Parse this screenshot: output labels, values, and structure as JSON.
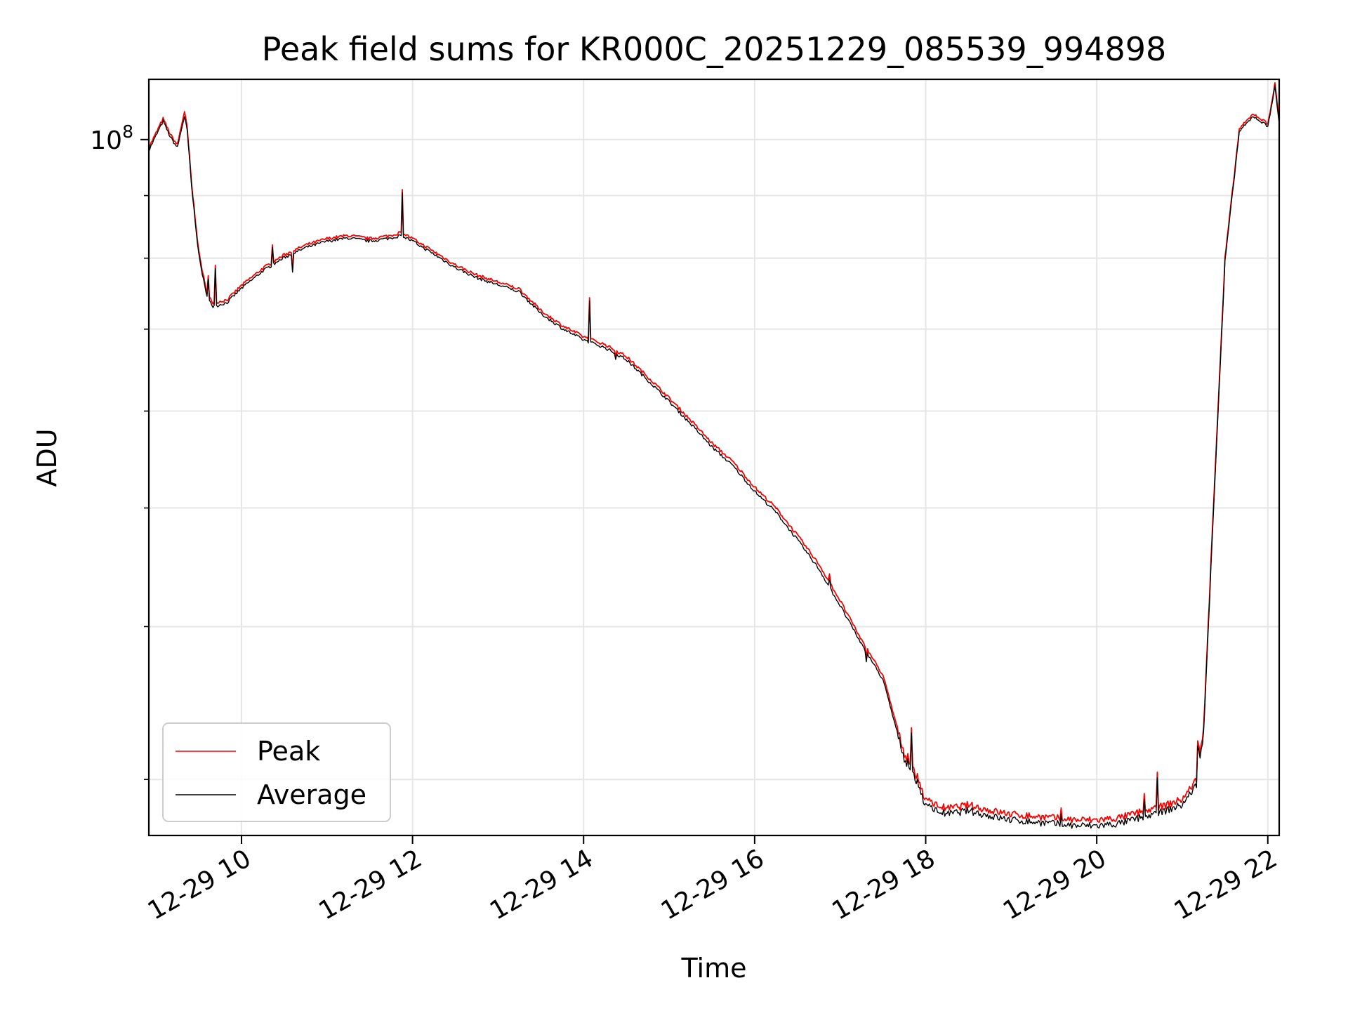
{
  "chart_data": {
    "type": "line",
    "title": "Peak field sums for KR000C_20251229_085539_994898",
    "xlabel": "Time",
    "ylabel": "ADU",
    "y_scale": "log",
    "y_tick_base": "10",
    "y_tick_exp": "8",
    "y_tick_label": "10^8",
    "xlim": [
      "2025-12-29 08:55",
      "2025-12-29 22:08"
    ],
    "ylim": [
      27000000,
      112000000
    ],
    "x_tick_labels": [
      "12-29 10",
      "12-29 12",
      "12-29 14",
      "12-29 16",
      "12-29 18",
      "12-29 20",
      "12-29 22"
    ],
    "x_ticks": [
      "2025-12-29 10:00",
      "2025-12-29 12:00",
      "2025-12-29 14:00",
      "2025-12-29 16:00",
      "2025-12-29 18:00",
      "2025-12-29 20:00",
      "2025-12-29 22:00"
    ],
    "y_minor_ticks": [
      30000000,
      40000000,
      50000000,
      60000000,
      70000000,
      80000000,
      90000000
    ],
    "grid": true,
    "legend_position": "lower-left",
    "colors": {
      "Peak": "#ff0000",
      "Average": "#000000"
    },
    "series": [
      {
        "name": "Peak",
        "x": [
          "08:55",
          "09:05",
          "09:10",
          "09:15",
          "09:20",
          "09:22",
          "09:25",
          "09:30",
          "09:35",
          "09:40",
          "09:50",
          "10:00",
          "10:15",
          "10:30",
          "10:45",
          "11:00",
          "11:15",
          "11:30",
          "11:45",
          "11:52",
          "12:00",
          "12:15",
          "12:30",
          "12:45",
          "13:00",
          "13:15",
          "13:30",
          "13:45",
          "14:00",
          "14:15",
          "14:30",
          "14:45",
          "15:00",
          "15:15",
          "15:30",
          "15:45",
          "16:00",
          "16:15",
          "16:30",
          "16:45",
          "17:00",
          "17:15",
          "17:30",
          "17:45",
          "17:55",
          "18:00",
          "18:15",
          "18:30",
          "18:45",
          "19:00",
          "19:15",
          "19:30",
          "19:45",
          "20:00",
          "20:15",
          "20:30",
          "20:45",
          "21:00",
          "21:10",
          "21:15",
          "21:20",
          "21:30",
          "21:40",
          "21:50",
          "22:00",
          "22:05",
          "22:08"
        ],
        "y": [
          98500000,
          104000000,
          101000000,
          99000000,
          105500000,
          102000000,
          92000000,
          81000000,
          75500000,
          73500000,
          74000000,
          76000000,
          78500000,
          80500000,
          82000000,
          83000000,
          83500000,
          83000000,
          83500000,
          84000000,
          83000000,
          81000000,
          79000000,
          77500000,
          76500000,
          75500000,
          72500000,
          70500000,
          69000000,
          68000000,
          66500000,
          64000000,
          61500000,
          59000000,
          56500000,
          54500000,
          52000000,
          50000000,
          47500000,
          45000000,
          42000000,
          39000000,
          36500000,
          31500000,
          30000000,
          28800000,
          28400000,
          28600000,
          28300000,
          28100000,
          28000000,
          27900000,
          27800000,
          27800000,
          27900000,
          28200000,
          28500000,
          28900000,
          30000000,
          33000000,
          45000000,
          80000000,
          102000000,
          105000000,
          103000000,
          111000000,
          104000000
        ]
      },
      {
        "name": "Average",
        "x": [
          "08:55",
          "09:05",
          "09:10",
          "09:15",
          "09:20",
          "09:22",
          "09:25",
          "09:30",
          "09:35",
          "09:40",
          "09:50",
          "10:00",
          "10:15",
          "10:30",
          "10:45",
          "11:00",
          "11:15",
          "11:30",
          "11:45",
          "11:52",
          "12:00",
          "12:15",
          "12:30",
          "12:45",
          "13:00",
          "13:15",
          "13:30",
          "13:45",
          "14:00",
          "14:15",
          "14:30",
          "14:45",
          "15:00",
          "15:15",
          "15:30",
          "15:45",
          "16:00",
          "16:15",
          "16:30",
          "16:45",
          "17:00",
          "17:15",
          "17:30",
          "17:45",
          "17:55",
          "18:00",
          "18:15",
          "18:30",
          "18:45",
          "19:00",
          "19:15",
          "19:30",
          "19:45",
          "20:00",
          "20:15",
          "20:30",
          "20:45",
          "21:00",
          "21:10",
          "21:15",
          "21:20",
          "21:30",
          "21:40",
          "21:50",
          "22:00",
          "22:05",
          "22:08"
        ],
        "y": [
          98000000,
          103500000,
          100500000,
          98500000,
          104500000,
          101500000,
          91500000,
          80500000,
          75000000,
          73000000,
          73600000,
          75600000,
          78100000,
          80100000,
          81600000,
          82600000,
          83100000,
          82600000,
          83100000,
          83500000,
          82600000,
          80600000,
          78600000,
          77100000,
          76100000,
          75100000,
          72100000,
          70100000,
          68600000,
          67600000,
          66100000,
          63600000,
          61100000,
          58600000,
          56100000,
          54100000,
          51600000,
          49600000,
          47100000,
          44600000,
          41600000,
          38700000,
          36200000,
          31200000,
          29700000,
          28500000,
          28100000,
          28300000,
          28000000,
          27800000,
          27700000,
          27600000,
          27500000,
          27500000,
          27600000,
          27900000,
          28200000,
          28600000,
          29700000,
          32700000,
          44500000,
          79500000,
          101500000,
          104500000,
          102500000,
          110500000,
          103000000
        ]
      }
    ]
  }
}
